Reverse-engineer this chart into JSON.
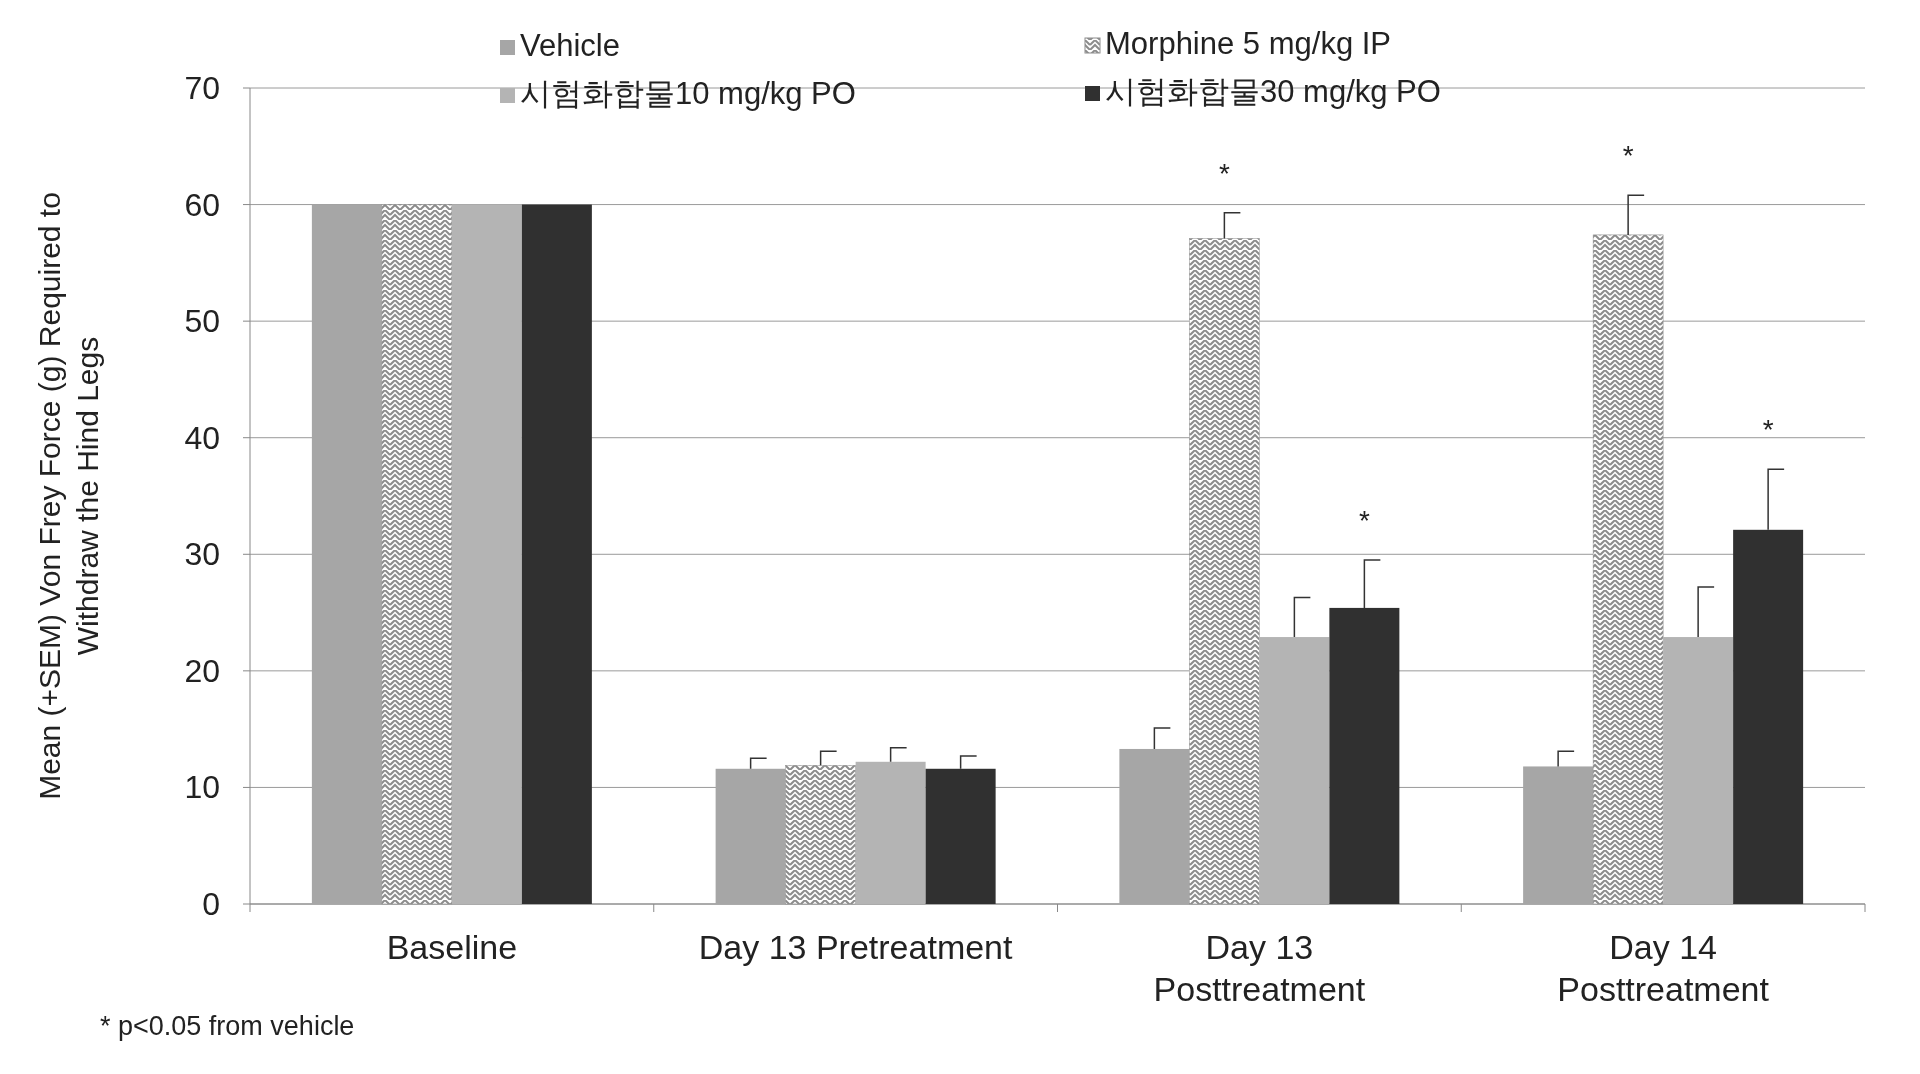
{
  "chart_data": {
    "type": "bar",
    "ylabel": "Mean (+SEM) Von Frey  Force (g) Required to Withdraw the Hind Legs",
    "categories": [
      "Baseline",
      "Day 13 Pretreatment",
      "Day 13\nPosttreatment",
      "Day 14\nPosttreatment"
    ],
    "series": [
      {
        "name": "Vehicle",
        "color": "#a6a6a6",
        "values": [
          60,
          11.6,
          13.3,
          11.8
        ],
        "errors": [
          null,
          [
            11.6,
            12.5
          ],
          [
            13.3,
            15.1
          ],
          [
            11.8,
            13.1
          ]
        ]
      },
      {
        "name": "Morphine 5 mg/kg IP",
        "color": "#8c8c8c",
        "value_labels": [
          null,
          null,
          "*",
          "*"
        ],
        "values": [
          60,
          11.9,
          57.1,
          57.4
        ],
        "errors": [
          null,
          [
            11.9,
            13.1
          ],
          [
            57.1,
            59.3
          ],
          [
            57.4,
            60.8
          ]
        ]
      },
      {
        "name": "시험화합물10 mg/kg PO",
        "color": "#b4b4b4",
        "values": [
          60,
          12.2,
          22.9,
          22.9
        ],
        "errors": [
          null,
          [
            12.2,
            13.4
          ],
          [
            22.9,
            26.3
          ],
          [
            22.9,
            27.2
          ]
        ]
      },
      {
        "name": "시험화합물30 mg/kg PO",
        "color": "#303030",
        "value_labels": [
          null,
          null,
          "*",
          "*"
        ],
        "values": [
          60,
          11.6,
          25.4,
          32.1
        ],
        "errors": [
          null,
          [
            11.6,
            12.7
          ],
          [
            25.4,
            29.5
          ],
          [
            32.1,
            37.3
          ]
        ]
      }
    ],
    "ylim": [
      0,
      70
    ],
    "yticks": [
      0,
      10,
      20,
      30,
      40,
      50,
      60,
      70
    ],
    "grid": "y",
    "legend": "top",
    "annotations": [
      "* p<0.05 from vehicle"
    ]
  }
}
